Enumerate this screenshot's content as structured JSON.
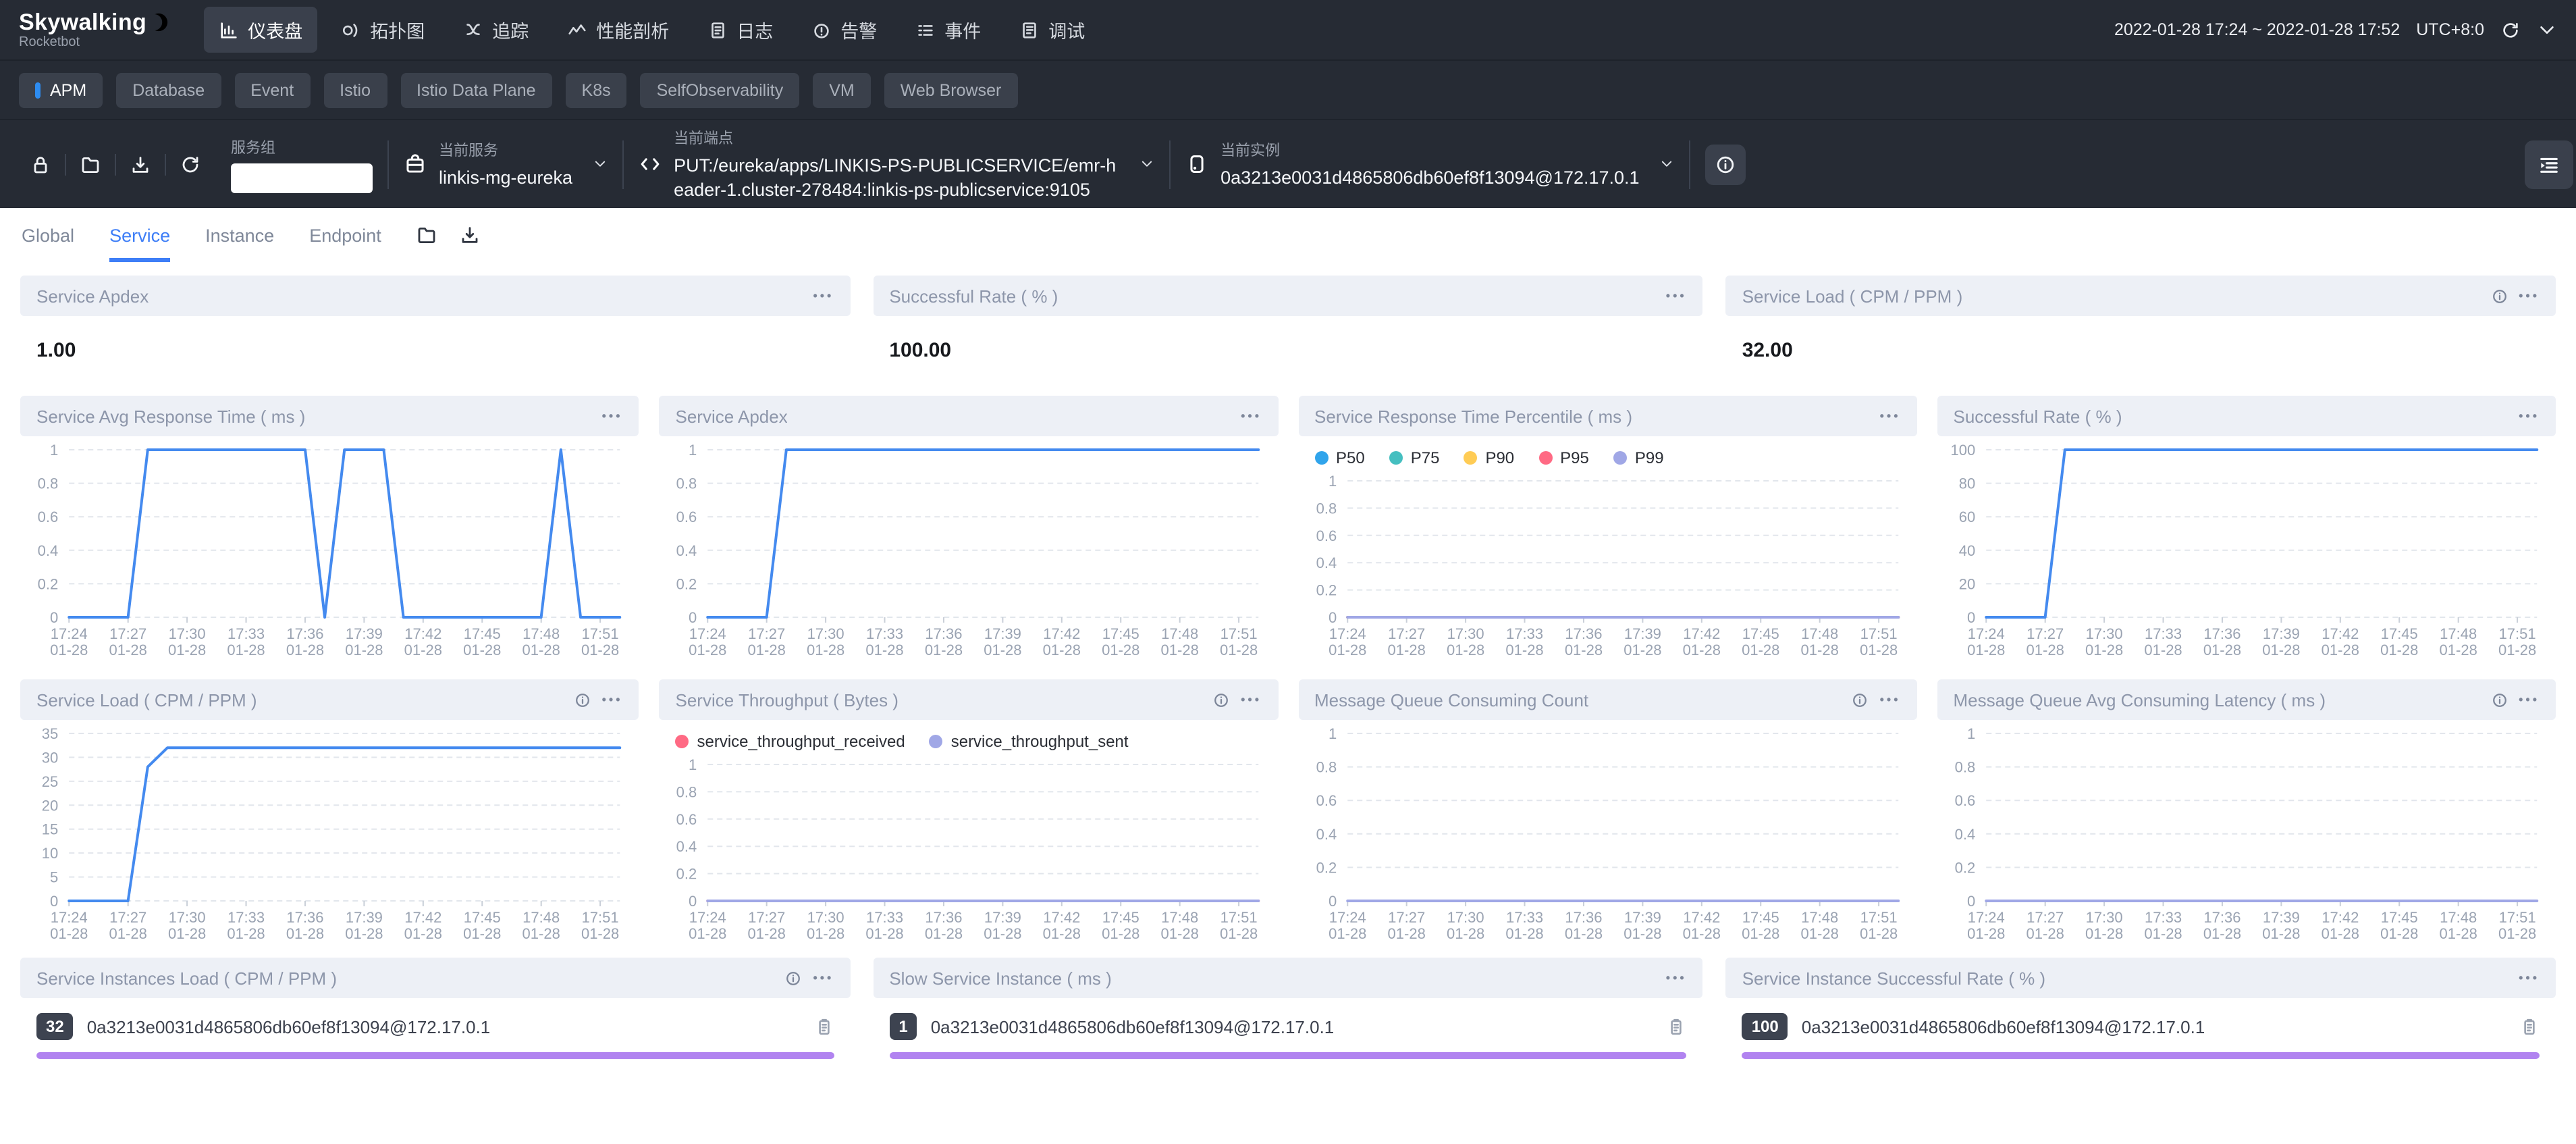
{
  "topnav": {
    "logo_title": "Skywalking",
    "logo_subtitle": "Rocketbot",
    "menu": [
      {
        "label": "仪表盘",
        "icon": "dashboard-icon",
        "active": true
      },
      {
        "label": "拓扑图",
        "icon": "topology-icon",
        "active": false
      },
      {
        "label": "追踪",
        "icon": "trace-icon",
        "active": false
      },
      {
        "label": "性能剖析",
        "icon": "profile-icon",
        "active": false
      },
      {
        "label": "日志",
        "icon": "log-icon",
        "active": false
      },
      {
        "label": "告警",
        "icon": "alarm-icon",
        "active": false
      },
      {
        "label": "事件",
        "icon": "event-icon",
        "active": false
      },
      {
        "label": "调试",
        "icon": "debug-icon",
        "active": false
      }
    ],
    "time_range": "2022-01-28 17:24 ~ 2022-01-28 17:52",
    "timezone": "UTC+8:0"
  },
  "dashboard_tabs": {
    "items": [
      {
        "label": "APM",
        "active": true
      },
      {
        "label": "Database",
        "active": false
      },
      {
        "label": "Event",
        "active": false
      },
      {
        "label": "Istio",
        "active": false
      },
      {
        "label": "Istio Data Plane",
        "active": false
      },
      {
        "label": "K8s",
        "active": false
      },
      {
        "label": "SelfObservability",
        "active": false
      },
      {
        "label": "VM",
        "active": false
      },
      {
        "label": "Web Browser",
        "active": false
      }
    ]
  },
  "selectors": {
    "tools": [
      {
        "icon": "lock-icon"
      },
      {
        "icon": "folder-icon"
      },
      {
        "icon": "download-icon"
      },
      {
        "icon": "refresh-icon"
      }
    ],
    "group_label": "服务组",
    "group_value": "",
    "service_label": "当前服务",
    "service_value": "linkis-mg-eureka",
    "endpoint_label": "当前端点",
    "endpoint_value": "PUT:/eureka/apps/LINKIS-PS-PUBLICSERVICE/emr-header-1.cluster-278484:linkis-ps-publicservice:9105",
    "instance_label": "当前实例",
    "instance_value": "0a3213e0031d4865806db60ef8f13094@172.17.0.1"
  },
  "view_tabs": {
    "items": [
      {
        "label": "Global",
        "active": false
      },
      {
        "label": "Service",
        "active": true
      },
      {
        "label": "Instance",
        "active": false
      },
      {
        "label": "Endpoint",
        "active": false
      }
    ]
  },
  "metric_cards": [
    {
      "title": "Service Apdex",
      "value": "1.00",
      "has_info": false
    },
    {
      "title": "Successful Rate ( % )",
      "value": "100.00",
      "has_info": false
    },
    {
      "title": "Service Load ( CPM / PPM )",
      "value": "32.00",
      "has_info": true
    }
  ],
  "chart_data": {
    "x_ticks": [
      {
        "time": "17:24",
        "date": "01-28"
      },
      {
        "time": "17:27",
        "date": "01-28"
      },
      {
        "time": "17:30",
        "date": "01-28"
      },
      {
        "time": "17:33",
        "date": "01-28"
      },
      {
        "time": "17:36",
        "date": "01-28"
      },
      {
        "time": "17:39",
        "date": "01-28"
      },
      {
        "time": "17:42",
        "date": "01-28"
      },
      {
        "time": "17:45",
        "date": "01-28"
      },
      {
        "time": "17:48",
        "date": "01-28"
      },
      {
        "time": "17:51",
        "date": "01-28"
      }
    ],
    "tick_indices": [
      0,
      3,
      6,
      9,
      12,
      15,
      18,
      21,
      24,
      27
    ],
    "n_points": 29,
    "x_range": [
      "17:24",
      "17:52"
    ],
    "grid": "dashed",
    "charts": [
      {
        "id": "service-avg-response-time",
        "title": "Service Avg Response Time ( ms )",
        "type": "line",
        "has_info": false,
        "legend": false,
        "ylim": [
          0,
          1
        ],
        "yticks": [
          0,
          0.2,
          0.4,
          0.6,
          0.8,
          1
        ],
        "series": [
          {
            "name": "avg_response_time",
            "color": "#448aef",
            "values": [
              0,
              0,
              0,
              0,
              1,
              1,
              1,
              1,
              1,
              1,
              1,
              1,
              1,
              0,
              1,
              1,
              1,
              0,
              0,
              0,
              0,
              0,
              0,
              0,
              0,
              1,
              0,
              0,
              0
            ]
          }
        ]
      },
      {
        "id": "service-apdex-chart",
        "title": "Service Apdex",
        "type": "line",
        "has_info": false,
        "legend": false,
        "ylim": [
          0,
          1
        ],
        "yticks": [
          0,
          0.2,
          0.4,
          0.6,
          0.8,
          1
        ],
        "series": [
          {
            "name": "apdex",
            "color": "#448aef",
            "values": [
              0,
              0,
              0,
              0,
              1,
              1,
              1,
              1,
              1,
              1,
              1,
              1,
              1,
              1,
              1,
              1,
              1,
              1,
              1,
              1,
              1,
              1,
              1,
              1,
              1,
              1,
              1,
              1,
              1
            ]
          }
        ]
      },
      {
        "id": "service-response-time-percentile",
        "title": "Service Response Time Percentile ( ms )",
        "type": "line",
        "has_info": false,
        "legend": true,
        "ylim": [
          0,
          1
        ],
        "yticks": [
          0,
          0.2,
          0.4,
          0.6,
          0.8,
          1
        ],
        "series": [
          {
            "name": "P50",
            "color": "#30a4eb",
            "values": [
              0,
              0,
              0,
              0,
              0,
              0,
              0,
              0,
              0,
              0,
              0,
              0,
              0,
              0,
              0,
              0,
              0,
              0,
              0,
              0,
              0,
              0,
              0,
              0,
              0,
              0,
              0,
              0,
              0
            ]
          },
          {
            "name": "P75",
            "color": "#45bfc0",
            "values": [
              0,
              0,
              0,
              0,
              0,
              0,
              0,
              0,
              0,
              0,
              0,
              0,
              0,
              0,
              0,
              0,
              0,
              0,
              0,
              0,
              0,
              0,
              0,
              0,
              0,
              0,
              0,
              0,
              0
            ]
          },
          {
            "name": "P90",
            "color": "#ffcc55",
            "values": [
              0,
              0,
              0,
              0,
              0,
              0,
              0,
              0,
              0,
              0,
              0,
              0,
              0,
              0,
              0,
              0,
              0,
              0,
              0,
              0,
              0,
              0,
              0,
              0,
              0,
              0,
              0,
              0,
              0
            ]
          },
          {
            "name": "P95",
            "color": "#ff6a84",
            "values": [
              0,
              0,
              0,
              0,
              0,
              0,
              0,
              0,
              0,
              0,
              0,
              0,
              0,
              0,
              0,
              0,
              0,
              0,
              0,
              0,
              0,
              0,
              0,
              0,
              0,
              0,
              0,
              0,
              0
            ]
          },
          {
            "name": "P99",
            "color": "#a0a7e6",
            "values": [
              0,
              0,
              0,
              0,
              0,
              0,
              0,
              0,
              0,
              0,
              0,
              0,
              0,
              0,
              0,
              0,
              0,
              0,
              0,
              0,
              0,
              0,
              0,
              0,
              0,
              0,
              0,
              0,
              0
            ]
          }
        ]
      },
      {
        "id": "successful-rate-chart",
        "title": "Successful Rate ( % )",
        "type": "line",
        "has_info": false,
        "legend": false,
        "ylim": [
          0,
          100
        ],
        "yticks": [
          0,
          20,
          40,
          60,
          80,
          100
        ],
        "series": [
          {
            "name": "successful_rate",
            "color": "#448aef",
            "values": [
              0,
              0,
              0,
              0,
              100,
              100,
              100,
              100,
              100,
              100,
              100,
              100,
              100,
              100,
              100,
              100,
              100,
              100,
              100,
              100,
              100,
              100,
              100,
              100,
              100,
              100,
              100,
              100,
              100
            ]
          }
        ]
      },
      {
        "id": "service-load-chart",
        "title": "Service Load ( CPM / PPM )",
        "type": "line",
        "has_info": true,
        "legend": false,
        "ylim": [
          0,
          35
        ],
        "yticks": [
          0,
          5,
          10,
          15,
          20,
          25,
          30,
          35
        ],
        "series": [
          {
            "name": "service_load",
            "color": "#448aef",
            "values": [
              0,
              0,
              0,
              0,
              28,
              32,
              32,
              32,
              32,
              32,
              32,
              32,
              32,
              32,
              32,
              32,
              32,
              32,
              32,
              32,
              32,
              32,
              32,
              32,
              32,
              32,
              32,
              32,
              32
            ]
          }
        ]
      },
      {
        "id": "service-throughput",
        "title": "Service Throughput ( Bytes )",
        "type": "line",
        "has_info": true,
        "legend": true,
        "ylim": [
          0,
          1
        ],
        "yticks": [
          0,
          0.2,
          0.4,
          0.6,
          0.8,
          1
        ],
        "series": [
          {
            "name": "service_throughput_received",
            "color": "#ff6a84",
            "values": [
              0,
              0,
              0,
              0,
              0,
              0,
              0,
              0,
              0,
              0,
              0,
              0,
              0,
              0,
              0,
              0,
              0,
              0,
              0,
              0,
              0,
              0,
              0,
              0,
              0,
              0,
              0,
              0,
              0
            ]
          },
          {
            "name": "service_throughput_sent",
            "color": "#a0a7e6",
            "values": [
              0,
              0,
              0,
              0,
              0,
              0,
              0,
              0,
              0,
              0,
              0,
              0,
              0,
              0,
              0,
              0,
              0,
              0,
              0,
              0,
              0,
              0,
              0,
              0,
              0,
              0,
              0,
              0,
              0
            ]
          }
        ]
      },
      {
        "id": "message-queue-consuming-count",
        "title": "Message Queue Consuming Count",
        "type": "line",
        "has_info": true,
        "legend": false,
        "ylim": [
          0,
          1
        ],
        "yticks": [
          0,
          0.2,
          0.4,
          0.6,
          0.8,
          1
        ],
        "series": [
          {
            "name": "mq_consuming_count",
            "color": "#a0a7e6",
            "values": [
              0,
              0,
              0,
              0,
              0,
              0,
              0,
              0,
              0,
              0,
              0,
              0,
              0,
              0,
              0,
              0,
              0,
              0,
              0,
              0,
              0,
              0,
              0,
              0,
              0,
              0,
              0,
              0,
              0
            ]
          }
        ]
      },
      {
        "id": "message-queue-avg-consuming-latency",
        "title": "Message Queue Avg Consuming Latency ( ms )",
        "type": "line",
        "has_info": true,
        "legend": false,
        "ylim": [
          0,
          1
        ],
        "yticks": [
          0,
          0.2,
          0.4,
          0.6,
          0.8,
          1
        ],
        "series": [
          {
            "name": "mq_avg_consuming_latency",
            "color": "#a0a7e6",
            "values": [
              0,
              0,
              0,
              0,
              0,
              0,
              0,
              0,
              0,
              0,
              0,
              0,
              0,
              0,
              0,
              0,
              0,
              0,
              0,
              0,
              0,
              0,
              0,
              0,
              0,
              0,
              0,
              0,
              0
            ]
          }
        ]
      }
    ]
  },
  "instance_lists": [
    {
      "title": "Service Instances Load ( CPM / PPM )",
      "has_info": true,
      "rows": [
        {
          "value": "32",
          "name": "0a3213e0031d4865806db60ef8f13094@172.17.0.1",
          "bar_pct": 100,
          "bar_color": "#b183f0"
        }
      ]
    },
    {
      "title": "Slow Service Instance ( ms )",
      "has_info": false,
      "rows": [
        {
          "value": "1",
          "name": "0a3213e0031d4865806db60ef8f13094@172.17.0.1",
          "bar_pct": 100,
          "bar_color": "#b183f0"
        }
      ]
    },
    {
      "title": "Service Instance Successful Rate ( % )",
      "has_info": false,
      "rows": [
        {
          "value": "100",
          "name": "0a3213e0031d4865806db60ef8f13094@172.17.0.1",
          "bar_pct": 100,
          "bar_color": "#b183f0"
        }
      ]
    }
  ]
}
